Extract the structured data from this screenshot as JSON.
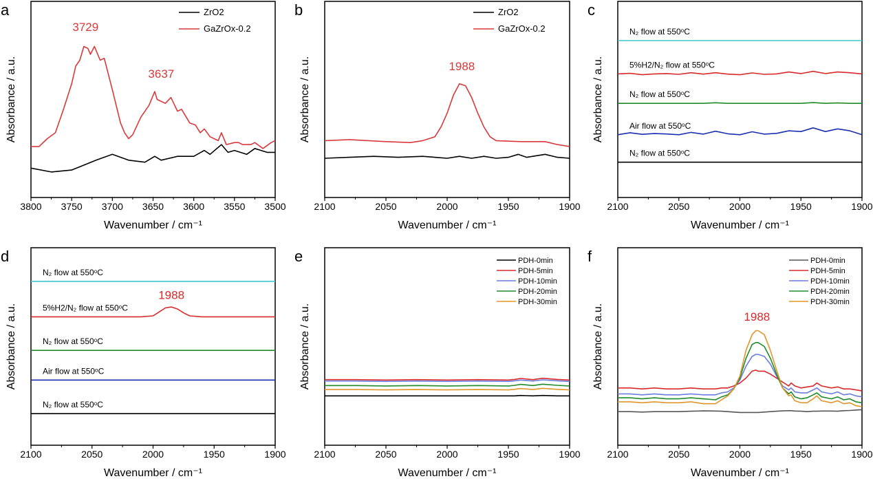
{
  "chart_data": [
    {
      "panel": "a",
      "type": "line",
      "xlabel": "Wavenumber / cm⁻¹",
      "ylabel": "Absorbance / a.u.",
      "xlim": [
        3800,
        3500
      ],
      "ylim": [
        0,
        100
      ],
      "xticks": [
        "3800",
        "3750",
        "3700",
        "3650",
        "3600",
        "3550",
        "3500"
      ],
      "grid": false,
      "legend": "top-right",
      "series": [
        {
          "name": "ZrO2",
          "color": "#000000",
          "x": [
            3800,
            3775,
            3750,
            3720,
            3700,
            3680,
            3660,
            3648,
            3640,
            3620,
            3600,
            3587,
            3580,
            3566,
            3558,
            3550,
            3535,
            3525,
            3510,
            3500
          ],
          "y": [
            15,
            13,
            14,
            19,
            22,
            19,
            18,
            21,
            19,
            21,
            21,
            24,
            22,
            27,
            23,
            24,
            22,
            25,
            23,
            23
          ]
        },
        {
          "name": "GaZrOx-0.2",
          "color": "#d9383a",
          "x": [
            3800,
            3790,
            3780,
            3770,
            3760,
            3750,
            3745,
            3740,
            3735,
            3730,
            3727,
            3722,
            3715,
            3710,
            3700,
            3690,
            3685,
            3680,
            3675,
            3665,
            3655,
            3648,
            3645,
            3635,
            3628,
            3620,
            3615,
            3605,
            3598,
            3592,
            3587,
            3580,
            3570,
            3566,
            3560,
            3550,
            3545,
            3540,
            3530,
            3525,
            3515,
            3505,
            3500
          ],
          "y": [
            26,
            26,
            30,
            33,
            45,
            58,
            67,
            70,
            77,
            76,
            73,
            77,
            70,
            71,
            55,
            38,
            33,
            30,
            32,
            41,
            47,
            54,
            50,
            48,
            51,
            44,
            45,
            38,
            37,
            33,
            35,
            31,
            29,
            33,
            27,
            28,
            28,
            27,
            27,
            28,
            25,
            28,
            29
          ]
        }
      ],
      "annotations": [
        {
          "text": "3729",
          "x": 3733,
          "y": 85,
          "color": "#d9383a"
        },
        {
          "text": "3637",
          "x": 3640,
          "y": 61,
          "color": "#d9383a"
        }
      ]
    },
    {
      "panel": "b",
      "type": "line",
      "xlabel": "Wavenumber / cm⁻¹",
      "ylabel": "Absorbance / a.u.",
      "xlim": [
        2100,
        1900
      ],
      "ylim": [
        0,
        100
      ],
      "xticks": [
        "2100",
        "2050",
        "2000",
        "1950",
        "1900"
      ],
      "grid": false,
      "legend": "top-right",
      "series": [
        {
          "name": "ZrO2",
          "color": "#000000",
          "x": [
            2100,
            2080,
            2060,
            2040,
            2020,
            2010,
            2000,
            1990,
            1980,
            1970,
            1960,
            1950,
            1942,
            1935,
            1920,
            1910,
            1900
          ],
          "y": [
            20,
            20.5,
            21,
            20.5,
            21,
            20.5,
            20,
            21,
            20,
            21,
            20,
            20.5,
            22,
            20.5,
            22,
            20.5,
            20
          ]
        },
        {
          "name": "GaZrOx-0.2",
          "color": "#d9383a",
          "x": [
            2100,
            2080,
            2050,
            2030,
            2020,
            2010,
            2005,
            2000,
            1995,
            1990,
            1985,
            1980,
            1975,
            1970,
            1965,
            1960,
            1940,
            1920,
            1910,
            1900
          ],
          "y": [
            29,
            29.5,
            28.5,
            28,
            29,
            31,
            36,
            43,
            52,
            58,
            57,
            51,
            43,
            36,
            31,
            29,
            28.5,
            28.5,
            27,
            26
          ]
        }
      ],
      "annotations": [
        {
          "text": "1988",
          "x": 1988,
          "y": 65,
          "color": "#d9383a"
        }
      ]
    },
    {
      "panel": "c",
      "type": "line",
      "xlabel": "Wavenumber / cm⁻¹",
      "ylabel": "Absorbance / a.u.",
      "xlim": [
        2100,
        1900
      ],
      "ylim": [
        0,
        100
      ],
      "xticks": [
        "2100",
        "2050",
        "2000",
        "1950",
        "1900"
      ],
      "grid": false,
      "legend": "none",
      "x": [
        2100,
        2090,
        2080,
        2070,
        2060,
        2050,
        2040,
        2030,
        2020,
        2010,
        2000,
        1990,
        1980,
        1970,
        1960,
        1950,
        1940,
        1930,
        1920,
        1910,
        1900
      ],
      "series": [
        {
          "label": "N₂ flow at 550ᵒC",
          "color": "#3cc8d0",
          "y": [
            80,
            80,
            80,
            80,
            80,
            80,
            80,
            80,
            80,
            80,
            80,
            80,
            80,
            80,
            80,
            80,
            80,
            80,
            80,
            80,
            80
          ]
        },
        {
          "label": "5%H2/N₂ flow at 550ᵒC",
          "color": "#d9282a",
          "y": [
            63,
            63.3,
            62.6,
            63,
            63.2,
            62.8,
            63.6,
            62.9,
            63.6,
            62.9,
            62.6,
            63.5,
            62.8,
            63,
            64,
            63.2,
            64.3,
            63.2,
            64,
            63.6,
            63
          ]
        },
        {
          "label": "N₂ flow at 550ᵒC",
          "color": "#1f8a2a",
          "y": [
            48,
            48,
            48,
            48,
            48,
            48,
            48,
            48,
            48.3,
            48,
            48,
            48,
            48,
            48,
            48,
            48,
            48.4,
            48,
            48.2,
            48,
            48
          ]
        },
        {
          "label": "Air flow at 550ᵒC",
          "color": "#1a2fb0",
          "y": [
            32,
            33,
            32.2,
            32.6,
            32.4,
            32,
            33.2,
            32.3,
            33.8,
            32.5,
            32,
            33.5,
            32.3,
            32.7,
            34,
            33.6,
            35.5,
            33.6,
            35,
            34,
            32
          ]
        },
        {
          "label": "N₂ flow at 550ᵒC",
          "color": "#000000",
          "y": [
            18,
            18,
            18,
            18,
            18,
            18,
            18,
            18,
            18,
            18,
            18,
            18,
            18,
            18,
            18,
            18,
            18,
            18,
            18,
            18,
            18
          ]
        }
      ],
      "annotations": []
    },
    {
      "panel": "d",
      "type": "line",
      "xlabel": "Wavenumber / cm⁻¹",
      "ylabel": "Absorbance / a.u.",
      "xlim": [
        2100,
        1900
      ],
      "ylim": [
        0,
        100
      ],
      "xticks": [
        "2100",
        "2050",
        "2000",
        "1950",
        "1900"
      ],
      "grid": false,
      "legend": "none",
      "x": [
        2100,
        2090,
        2080,
        2070,
        2060,
        2050,
        2040,
        2030,
        2020,
        2010,
        2000,
        1995,
        1990,
        1985,
        1980,
        1975,
        1970,
        1960,
        1950,
        1940,
        1930,
        1920,
        1910,
        1900
      ],
      "series": [
        {
          "label": "N₂ flow at 550ᵒC",
          "color": "#3cc8d0",
          "y": [
            83,
            83,
            83,
            83,
            83,
            83,
            83,
            83,
            83,
            83,
            83,
            83,
            83,
            83,
            83,
            83,
            83,
            83,
            83,
            83,
            83,
            83,
            83,
            83
          ]
        },
        {
          "label": "5%H2/N₂ flow at 550ᵒC",
          "color": "#d9282a",
          "y": [
            65,
            65,
            65,
            65,
            65,
            65,
            65,
            65,
            65,
            65,
            65.5,
            67.5,
            69.5,
            70,
            69,
            67,
            65.5,
            65,
            65,
            65,
            65,
            65,
            65,
            65
          ]
        },
        {
          "label": "N₂ flow at 550ᵒC",
          "color": "#1f8a2a",
          "y": [
            48,
            48,
            48,
            48,
            48,
            48,
            48,
            48,
            48,
            48,
            48,
            48,
            48,
            48,
            48,
            48,
            48,
            48,
            48,
            48,
            48,
            48,
            48,
            48
          ]
        },
        {
          "label": "Air flow at 550ᵒC",
          "color": "#1a2fb0",
          "y": [
            33,
            33,
            33,
            33,
            33,
            33,
            33,
            33,
            33,
            33,
            33,
            33,
            33,
            33,
            33,
            33,
            33,
            33,
            33,
            33,
            33,
            33,
            33,
            33
          ]
        },
        {
          "label": "N₂ flow at 550ᵒC",
          "color": "#000000",
          "y": [
            16,
            16,
            16,
            16,
            16,
            16,
            16,
            16,
            16,
            16,
            16,
            16,
            16,
            16,
            16,
            16,
            16,
            16,
            16,
            16,
            16,
            16,
            16,
            16
          ]
        }
      ],
      "annotations": [
        {
          "text": "1988",
          "x": 1985,
          "y": 74,
          "color": "#d9282a"
        }
      ]
    },
    {
      "panel": "e",
      "type": "line",
      "xlabel": "Wavenumber / cm⁻¹",
      "ylabel": "Absorbance / a.u.",
      "xlim": [
        2100,
        1900
      ],
      "ylim": [
        0,
        100
      ],
      "xticks": [
        "2100",
        "2050",
        "2000",
        "1950",
        "1900"
      ],
      "grid": false,
      "legend": "top-right",
      "x": [
        2100,
        2075,
        2050,
        2025,
        2000,
        1975,
        1950,
        1945,
        1940,
        1930,
        1922,
        1910,
        1900
      ],
      "series": [
        {
          "name": "PDH-0min",
          "color": "#000000",
          "y": [
            25,
            25,
            25,
            25,
            25,
            25,
            25,
            25,
            25.2,
            25,
            25.2,
            25,
            25
          ]
        },
        {
          "name": "PDH-5min",
          "color": "#d9282a",
          "y": [
            33.2,
            33.2,
            33,
            33.2,
            33,
            33.2,
            33,
            33.3,
            33.8,
            33.2,
            33.9,
            33.3,
            33
          ]
        },
        {
          "name": "PDH-10min",
          "color": "#6a7de0",
          "y": [
            32.5,
            32.5,
            32.3,
            32.5,
            32.3,
            32.5,
            32.3,
            32.6,
            33,
            32.5,
            33.1,
            32.6,
            32.3
          ]
        },
        {
          "name": "PDH-20min",
          "color": "#1f8a2a",
          "y": [
            30.2,
            30.2,
            30,
            30.2,
            30,
            30.2,
            30,
            30.3,
            30.8,
            30.2,
            30.9,
            30.3,
            30
          ]
        },
        {
          "name": "PDH-30min",
          "color": "#e0952a",
          "y": [
            28.2,
            28.2,
            28,
            28.2,
            28,
            28.2,
            28,
            28.3,
            28.7,
            28.2,
            28.8,
            28.3,
            28
          ]
        }
      ],
      "annotations": []
    },
    {
      "panel": "f",
      "type": "line",
      "xlabel": "Wavenumber / cm⁻¹",
      "ylabel": "Absorbance / a.u.",
      "xlim": [
        2100,
        1900
      ],
      "ylim": [
        0,
        100
      ],
      "xticks": [
        "2100",
        "2050",
        "2000",
        "1950",
        "1900"
      ],
      "grid": false,
      "legend": "top-right",
      "x": [
        2100,
        2090,
        2080,
        2070,
        2060,
        2050,
        2040,
        2030,
        2020,
        2015,
        2010,
        2005,
        2000,
        1995,
        1990,
        1987,
        1985,
        1980,
        1975,
        1970,
        1965,
        1960,
        1958,
        1955,
        1950,
        1945,
        1940,
        1937,
        1933,
        1925,
        1920,
        1915,
        1910,
        1905,
        1900
      ],
      "series": [
        {
          "name": "PDH-0min",
          "color": "#555555",
          "y": [
            17,
            17,
            16.8,
            17,
            17,
            17,
            17.2,
            17.4,
            17.3,
            17.2,
            17,
            16.8,
            16.6,
            16.6,
            16.6,
            16.6,
            16.6,
            16.8,
            17,
            17.2,
            17.4,
            17.5,
            17.5,
            17.3,
            17.2,
            17,
            17.2,
            17.2,
            17.3,
            17.3,
            17.2,
            17.5,
            17.6,
            17.8,
            18
          ]
        },
        {
          "name": "PDH-5min",
          "color": "#d9282a",
          "y": [
            29,
            29,
            28.5,
            29,
            28.5,
            28.5,
            29,
            28.5,
            28.5,
            29,
            29,
            30,
            31.5,
            34,
            37.5,
            38,
            37.5,
            37.5,
            36,
            34,
            32,
            30,
            31.5,
            30,
            29,
            29.5,
            30,
            31.5,
            30,
            29,
            29.5,
            28.5,
            28.5,
            28,
            27.5
          ]
        },
        {
          "name": "PDH-10min",
          "color": "#6a7de0",
          "y": [
            26,
            26,
            25.5,
            26,
            25.5,
            25.5,
            26,
            25.5,
            25.5,
            26.5,
            27,
            29,
            33,
            40,
            45,
            46,
            46,
            45,
            41,
            35,
            30,
            28,
            29,
            27,
            26.5,
            26.5,
            28,
            29,
            27,
            26,
            27,
            25.5,
            26,
            25,
            24.5
          ]
        },
        {
          "name": "PDH-20min",
          "color": "#1f8a2a",
          "y": [
            24,
            24,
            23.5,
            24,
            23.5,
            23.5,
            24,
            23.5,
            23,
            24.5,
            25.5,
            28.5,
            34,
            44,
            51,
            52,
            52,
            50,
            44,
            36,
            29,
            26,
            27,
            24.5,
            23.5,
            24,
            25.5,
            26.5,
            24.5,
            23.5,
            24.5,
            23,
            23.5,
            22,
            21.5
          ]
        },
        {
          "name": "PDH-30min",
          "color": "#e0952a",
          "y": [
            22,
            22,
            21.5,
            22,
            21.5,
            21.5,
            22,
            21,
            21,
            23,
            25,
            28.5,
            35,
            48,
            56,
            58,
            58,
            56,
            48,
            38,
            29,
            25,
            25.5,
            22.5,
            21.5,
            21.5,
            23.5,
            25,
            22.5,
            21.5,
            22.5,
            21,
            21.5,
            20,
            19.5
          ]
        }
      ],
      "annotations": [
        {
          "text": "1988",
          "x": 1986,
          "y": 63,
          "color": "#d9282a"
        }
      ]
    }
  ]
}
